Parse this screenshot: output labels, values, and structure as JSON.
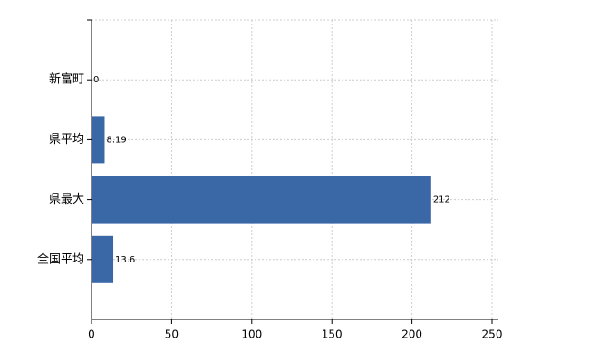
{
  "chart_data": {
    "type": "bar",
    "orientation": "horizontal",
    "categories": [
      "新富町",
      "県平均",
      "県最大",
      "全国平均"
    ],
    "values": [
      0,
      8.19,
      212,
      13.6
    ],
    "color": "#3a67a6",
    "xlim": [
      0,
      250
    ],
    "xticks": [
      0,
      50,
      100,
      150,
      200,
      250
    ],
    "grid": true
  }
}
